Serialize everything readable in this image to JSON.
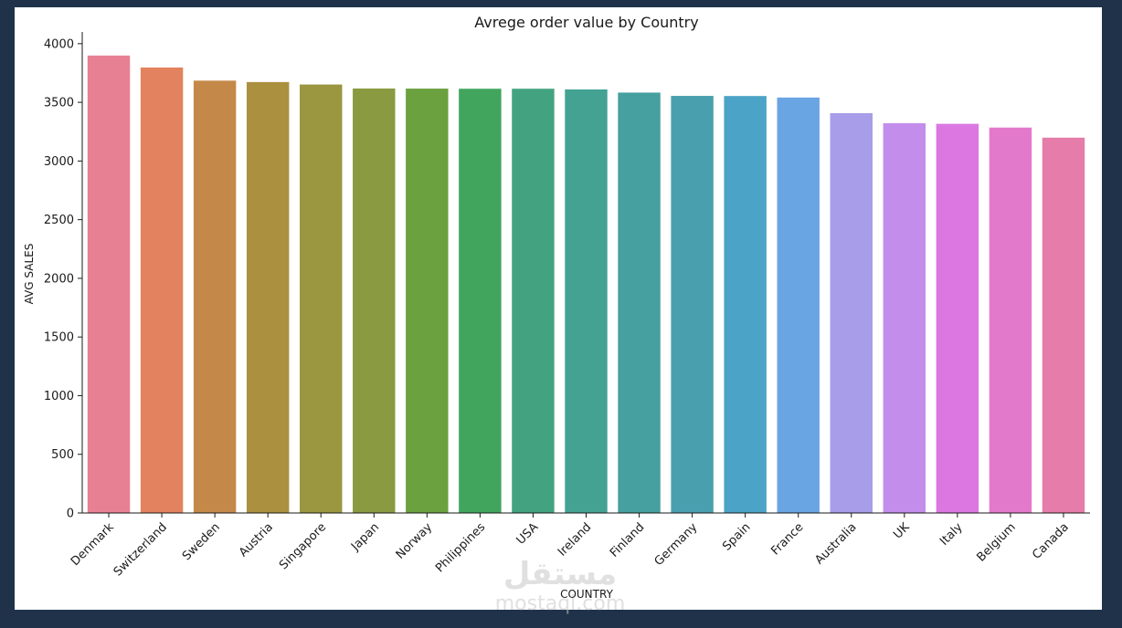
{
  "chart_data": {
    "type": "bar",
    "title": "Avrege order value by Country",
    "xlabel": "COUNTRY",
    "ylabel": "AVG SALES",
    "ylim": [
      0,
      4100
    ],
    "yticks": [
      0,
      500,
      1000,
      1500,
      2000,
      2500,
      3000,
      3500,
      4000
    ],
    "grid": false,
    "categories": [
      "Denmark",
      "Switzerland",
      "Sweden",
      "Austria",
      "Singapore",
      "Japan",
      "Norway",
      "Philippines",
      "USA",
      "Ireland",
      "Finland",
      "Germany",
      "Spain",
      "France",
      "Australia",
      "UK",
      "Italy",
      "Belgium",
      "Canada"
    ],
    "values": [
      3899,
      3797,
      3685,
      3673,
      3652,
      3618,
      3617,
      3616,
      3616,
      3610,
      3583,
      3555,
      3554,
      3541,
      3408,
      3322,
      3317,
      3285,
      3199
    ],
    "colors": [
      "#e88093",
      "#e2825e",
      "#c48948",
      "#ab9040",
      "#9b9640",
      "#8a9a40",
      "#6ba13f",
      "#41a55e",
      "#43a380",
      "#44a293",
      "#45a09f",
      "#4a9faf",
      "#4ba3c7",
      "#6aa5e3",
      "#a79de8",
      "#c38deb",
      "#dc77e2",
      "#e379cb",
      "#e57ca9"
    ]
  },
  "watermark": {
    "logo_text": "مستقل",
    "site_text": "mostaql.com"
  }
}
